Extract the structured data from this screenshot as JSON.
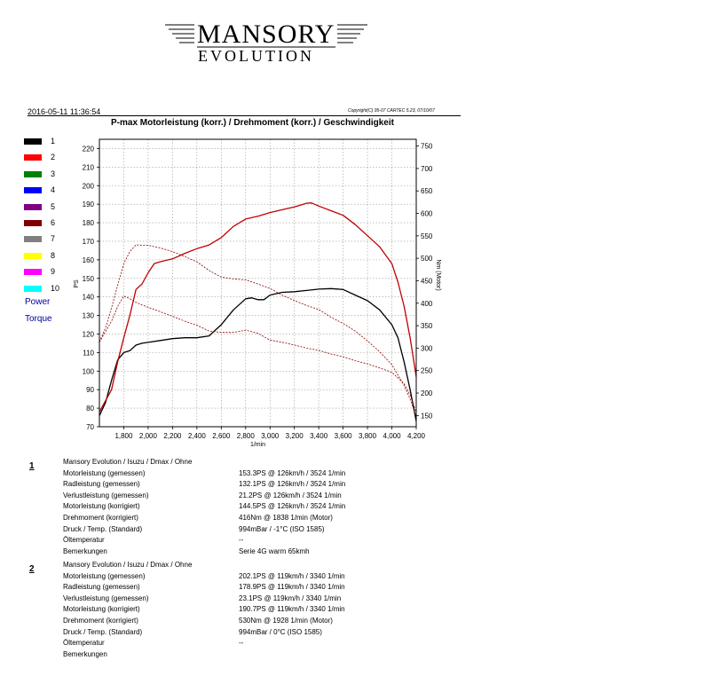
{
  "logo": {
    "top": "MANSORY",
    "bottom": "EVOLUTION"
  },
  "header": {
    "datetime": "2016-05-11 11:36:54",
    "copyright": "Copyright(C) 95-07 CARTEC 5.23, 07/10/07"
  },
  "legend": {
    "items": [
      {
        "label": "1",
        "color": "#000000"
      },
      {
        "label": "2",
        "color": "#ff0000"
      },
      {
        "label": "3",
        "color": "#008000"
      },
      {
        "label": "4",
        "color": "#0000ff"
      },
      {
        "label": "5",
        "color": "#800080"
      },
      {
        "label": "6",
        "color": "#800000"
      },
      {
        "label": "7",
        "color": "#808080"
      },
      {
        "label": "8",
        "color": "#ffff00"
      },
      {
        "label": "9",
        "color": "#ff00ff"
      },
      {
        "label": "10",
        "color": "#00ffff"
      }
    ],
    "power_label": "Power",
    "torque_label": "Torque"
  },
  "chart_data": {
    "type": "line",
    "title": "P-max Motorleistung (korr.) / Drehmoment (korr.) / Geschwindigkeit",
    "xlabel": "1/min",
    "ylabel_left": "PS",
    "ylabel_right": "Nm (Motor)",
    "xlim": [
      1600,
      4200
    ],
    "ylim_left": [
      70,
      225
    ],
    "ylim_right": [
      125,
      765
    ],
    "x_ticks": [
      "1,800",
      "2,000",
      "2,200",
      "2,400",
      "2,600",
      "2,800",
      "3,000",
      "3,200",
      "3,400",
      "3,600",
      "3,800",
      "4,000",
      "4,200"
    ],
    "y_ticks_left": [
      "70",
      "80",
      "90",
      "100",
      "110",
      "120",
      "130",
      "140",
      "150",
      "160",
      "170",
      "180",
      "190",
      "200",
      "210",
      "220"
    ],
    "y_ticks_right": [
      "150",
      "200",
      "250",
      "300",
      "350",
      "400",
      "450",
      "500",
      "550",
      "600",
      "650",
      "700",
      "750"
    ],
    "grid": true,
    "series": [
      {
        "name": "1",
        "quantity": "Power",
        "axis": "left",
        "color": "#000000",
        "style": "solid",
        "x": [
          1600,
          1650,
          1700,
          1750,
          1800,
          1850,
          1900,
          1950,
          2000,
          2100,
          2200,
          2300,
          2400,
          2500,
          2600,
          2700,
          2800,
          2850,
          2900,
          2950,
          3000,
          3100,
          3200,
          3300,
          3400,
          3500,
          3600,
          3700,
          3800,
          3900,
          4000,
          4050,
          4100,
          4150,
          4200
        ],
        "y": [
          76,
          83,
          95,
          106,
          110,
          111,
          114,
          115,
          115.5,
          116.5,
          117.5,
          118,
          118,
          119,
          125,
          133,
          139,
          139.5,
          138.5,
          138.5,
          141,
          142.5,
          142.8,
          143.5,
          144.2,
          144.5,
          144,
          141,
          138,
          133,
          125,
          118,
          105,
          90,
          73
        ]
      },
      {
        "name": "2",
        "quantity": "Power",
        "axis": "left",
        "color": "#c00000",
        "style": "solid",
        "x": [
          1600,
          1650,
          1700,
          1750,
          1800,
          1850,
          1900,
          1950,
          2000,
          2050,
          2100,
          2200,
          2300,
          2400,
          2500,
          2600,
          2700,
          2800,
          2900,
          3000,
          3100,
          3200,
          3300,
          3340,
          3400,
          3500,
          3600,
          3700,
          3800,
          3900,
          4000,
          4050,
          4100,
          4150,
          4200
        ],
        "y": [
          78,
          84,
          90,
          105,
          118,
          130,
          144,
          147,
          153,
          158,
          159,
          160.5,
          163.5,
          166,
          168,
          172,
          178,
          182,
          183.5,
          185.5,
          187,
          188.5,
          190.5,
          190.7,
          189,
          186.5,
          184,
          179,
          173,
          167,
          158,
          148,
          135,
          118,
          97
        ]
      },
      {
        "name": "1",
        "quantity": "Torque",
        "axis": "right",
        "color": "#8b0000",
        "style": "dashed",
        "x": [
          1600,
          1650,
          1700,
          1750,
          1800,
          1850,
          1900,
          1950,
          2000,
          2100,
          2200,
          2300,
          2400,
          2500,
          2600,
          2700,
          2800,
          2900,
          3000,
          3100,
          3200,
          3300,
          3400,
          3500,
          3600,
          3700,
          3800,
          3900,
          4000,
          4100,
          4150,
          4200
        ],
        "y": [
          313,
          337,
          360,
          393,
          416,
          410,
          402,
          396,
          391,
          381,
          371,
          360,
          351,
          338,
          335,
          335,
          340,
          333,
          318,
          313,
          307,
          300,
          295,
          287,
          281,
          272,
          265,
          256,
          246,
          221,
          196,
          157
        ]
      },
      {
        "name": "2",
        "quantity": "Torque",
        "axis": "right",
        "color": "#8b0000",
        "style": "dashed",
        "x": [
          1600,
          1650,
          1700,
          1750,
          1800,
          1850,
          1900,
          1950,
          2000,
          2100,
          2200,
          2300,
          2400,
          2500,
          2600,
          2700,
          2800,
          2900,
          3000,
          3100,
          3200,
          3300,
          3400,
          3500,
          3600,
          3700,
          3800,
          3900,
          4000,
          4100,
          4150,
          4200
        ],
        "y": [
          314,
          345,
          390,
          440,
          488,
          515,
          530,
          529,
          529,
          523,
          515,
          504,
          492,
          473,
          458,
          454,
          452,
          443,
          433,
          418,
          406,
          395,
          386,
          369,
          355,
          338,
          316,
          292,
          263,
          217,
          187,
          147
        ]
      }
    ]
  },
  "runs": [
    {
      "number": "1",
      "vehicle": "Mansory Evolution / Isuzu / Dmax / Ohne",
      "rows": [
        {
          "label": "Motorleistung (gemessen)",
          "value": "153.3PS @ 126km/h / 3524 1/min"
        },
        {
          "label": "Radleistung (gemessen)",
          "value": "132.1PS @ 126km/h / 3524 1/min"
        },
        {
          "label": "Verlustleistung (gemessen)",
          "value": "21.2PS @ 126km/h / 3524 1/min"
        },
        {
          "label": "Motorleistung (korrigiert)",
          "value": "144.5PS @ 126km/h / 3524 1/min"
        },
        {
          "label": "Drehmoment (korrigiert)",
          "value": "416Nm @ 1838 1/min (Motor)"
        },
        {
          "label": "Druck / Temp. (Standard)",
          "value": "994mBar / -1°C   (ISO 1585)"
        },
        {
          "label": "Öltemperatur",
          "value": "--"
        },
        {
          "label": "Bemerkungen",
          "value": "Serie 4G warm 65kmh"
        }
      ]
    },
    {
      "number": "2",
      "vehicle": "Mansory Evolution / Isuzu / Dmax / Ohne",
      "rows": [
        {
          "label": "Motorleistung (gemessen)",
          "value": "202.1PS @ 119km/h / 3340 1/min"
        },
        {
          "label": "Radleistung (gemessen)",
          "value": "178.9PS @ 119km/h / 3340 1/min"
        },
        {
          "label": "Verlustleistung (gemessen)",
          "value": "23.1PS @ 119km/h / 3340 1/min"
        },
        {
          "label": "Motorleistung (korrigiert)",
          "value": "190.7PS @ 119km/h / 3340 1/min"
        },
        {
          "label": "Drehmoment (korrigiert)",
          "value": "530Nm @ 1928 1/min (Motor)"
        },
        {
          "label": "Druck / Temp. (Standard)",
          "value": "994mBar / 0°C   (ISO 1585)"
        },
        {
          "label": "Öltemperatur",
          "value": "--"
        },
        {
          "label": "Bemerkungen",
          "value": ""
        }
      ]
    }
  ]
}
